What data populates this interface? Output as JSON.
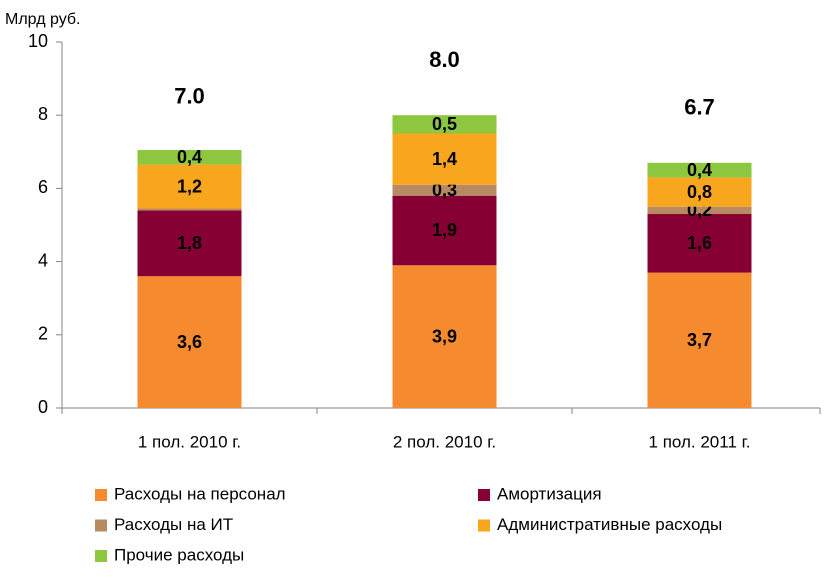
{
  "chart_data": {
    "type": "stacked_bar",
    "y_label": "Млрд руб.",
    "categories": [
      "1 пол. 2010 г.",
      "2 пол. 2010 г.",
      "1 пол. 2011 г."
    ],
    "series": [
      {
        "name": "Расходы на персонал",
        "color": "#f58a2e",
        "label_color": "#000000",
        "values": [
          3.6,
          3.9,
          3.7
        ],
        "value_labels": [
          "3,6",
          "3,9",
          "3,7"
        ]
      },
      {
        "name": "Амортизация",
        "color": "#860033",
        "label_color": "#ffffff",
        "values": [
          1.8,
          1.9,
          1.6
        ],
        "value_labels": [
          "1,8",
          "1,9",
          "1,6"
        ]
      },
      {
        "name": "Расходы на ИТ",
        "color": "#b88a62",
        "label_color": "#000000",
        "values": [
          0.05,
          0.3,
          0.2
        ],
        "value_labels": [
          null,
          "0,3",
          "0,2"
        ]
      },
      {
        "name": "Административные расходы",
        "color": "#f9a61f",
        "label_color": "#000000",
        "values": [
          1.2,
          1.4,
          0.8
        ],
        "value_labels": [
          "1,2",
          "1,4",
          "0,8"
        ]
      },
      {
        "name": "Прочие расходы",
        "color": "#8dc63f",
        "label_color": "#000000",
        "values": [
          0.4,
          0.5,
          0.4
        ],
        "value_labels": [
          "0,4",
          "0,5",
          "0,4"
        ]
      }
    ],
    "totals": [
      7.0,
      8.0,
      6.7
    ],
    "total_labels": [
      "7.0",
      "8.0",
      "6.7"
    ],
    "total_color": "#f58a2e",
    "ylim": [
      0,
      10
    ],
    "yticks": [
      0,
      2,
      4,
      6,
      8,
      10
    ],
    "grid": false
  }
}
